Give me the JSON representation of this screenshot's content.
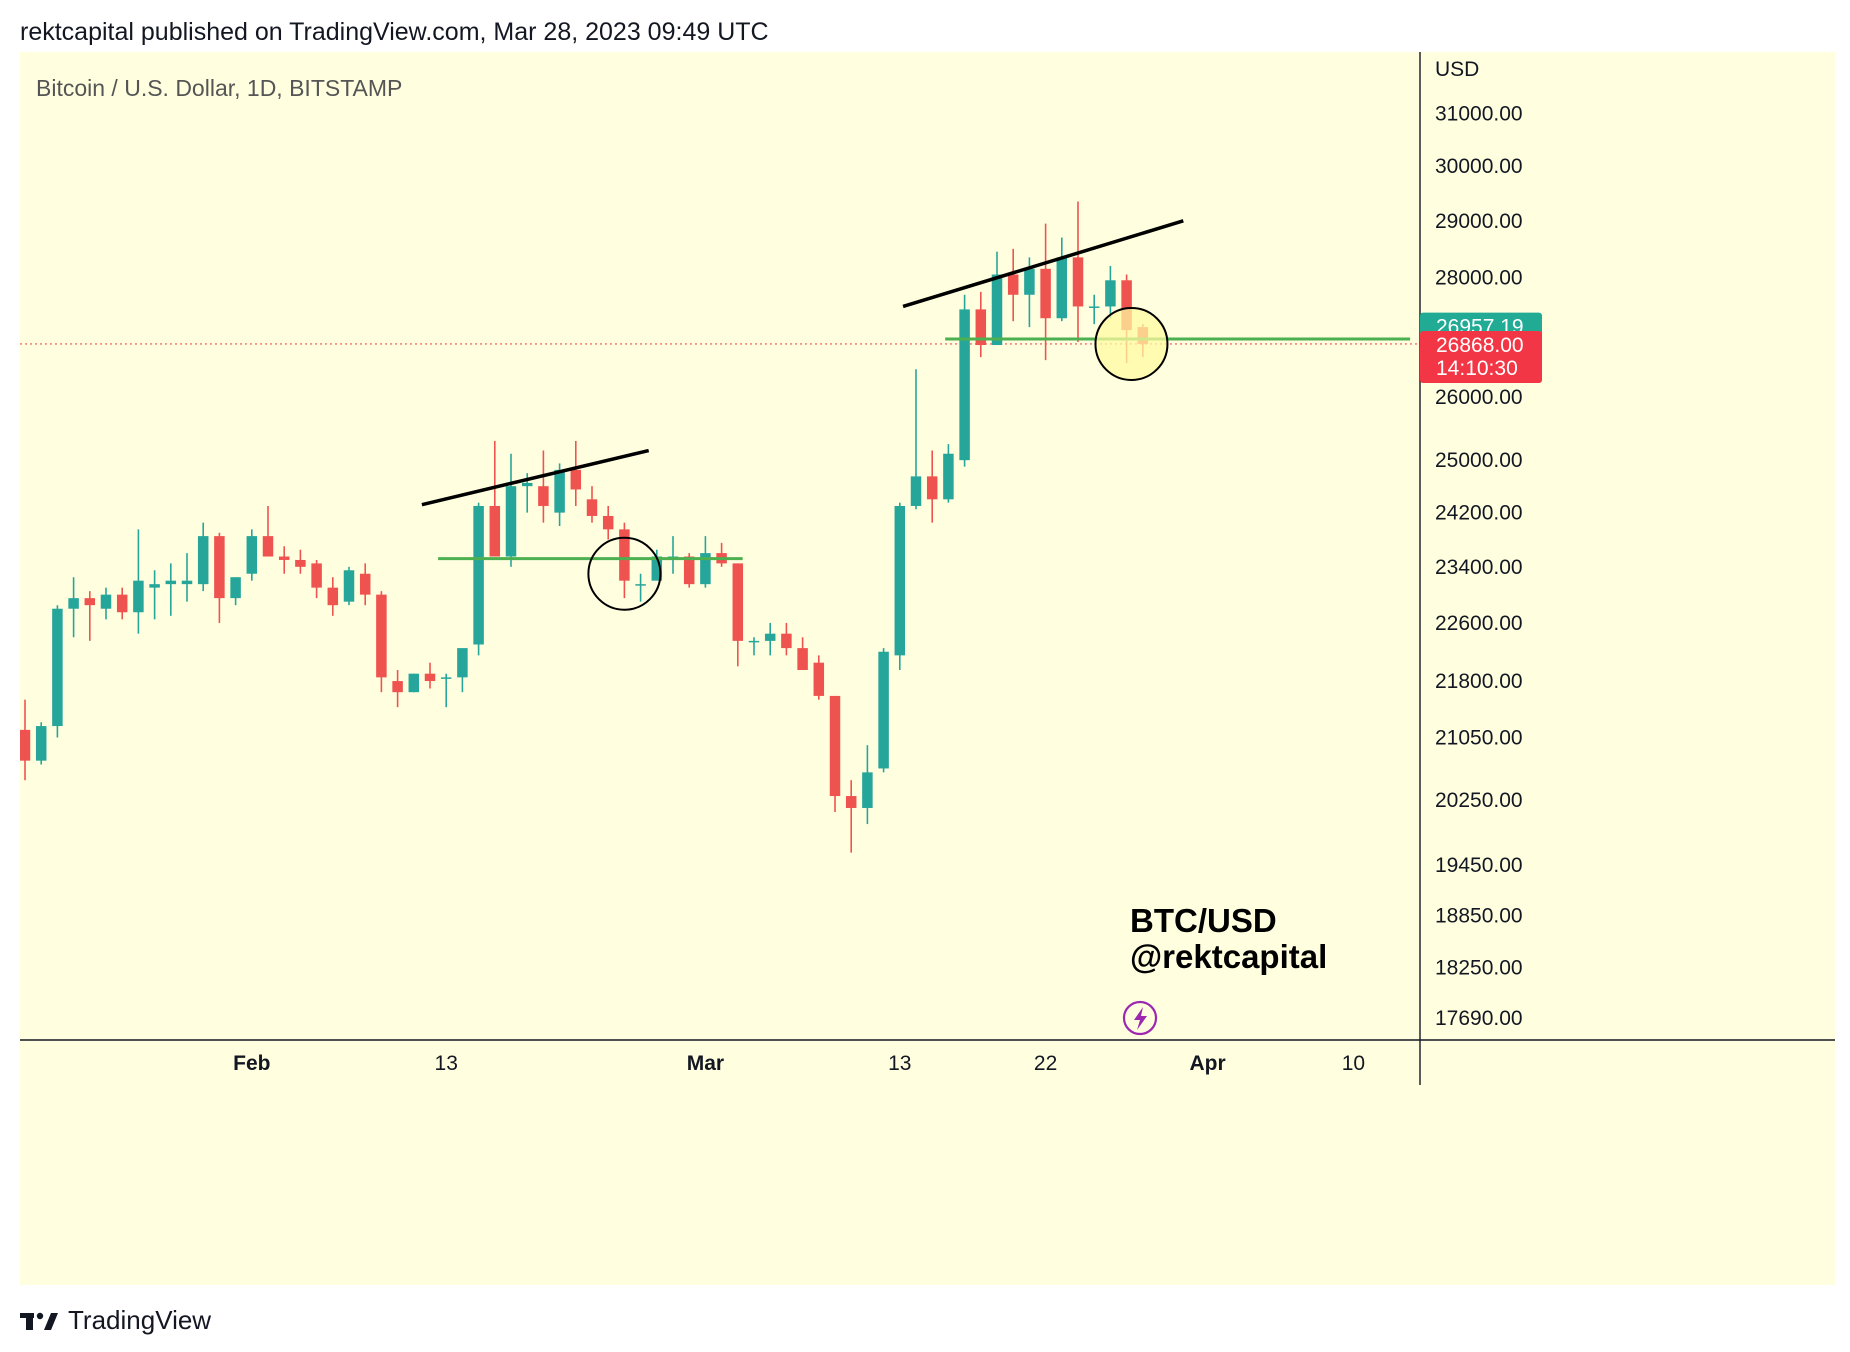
{
  "header": {
    "published": "rektcapital published on TradingView.com, Mar 28, 2023 09:49 UTC"
  },
  "footer": {
    "brand": "TradingView"
  },
  "chart_data": {
    "type": "candlestick",
    "symbol_label": "Bitcoin / U.S. Dollar, 1D, BITSTAMP",
    "currency": "USD",
    "scale": "log",
    "ylim": [
      17450,
      32200
    ],
    "y_ticks": [
      "31000.00",
      "30000.00",
      "29000.00",
      "28000.00",
      "26000.00",
      "25000.00",
      "24200.00",
      "23400.00",
      "22600.00",
      "21800.00",
      "21050.00",
      "20250.00",
      "19450.00",
      "18850.00",
      "18250.00",
      "17690.00"
    ],
    "x_ticks": [
      {
        "label": "Feb",
        "day": 14,
        "bold": true
      },
      {
        "label": "13",
        "day": 26,
        "bold": false
      },
      {
        "label": "Mar",
        "day": 42,
        "bold": true
      },
      {
        "label": "13",
        "day": 54,
        "bold": false
      },
      {
        "label": "22",
        "day": 63,
        "bold": false
      },
      {
        "label": "Apr",
        "day": 73,
        "bold": true
      },
      {
        "label": "10",
        "day": 82,
        "bold": false
      }
    ],
    "candles": [
      {
        "o": 21150,
        "h": 21550,
        "l": 20500,
        "c": 20750
      },
      {
        "o": 20750,
        "h": 21250,
        "l": 20700,
        "c": 21200
      },
      {
        "o": 21200,
        "h": 22850,
        "l": 21050,
        "c": 22800
      },
      {
        "o": 22800,
        "h": 23250,
        "l": 22400,
        "c": 22950
      },
      {
        "o": 22950,
        "h": 23050,
        "l": 22350,
        "c": 22850
      },
      {
        "o": 22800,
        "h": 23100,
        "l": 22650,
        "c": 23000
      },
      {
        "o": 23000,
        "h": 23100,
        "l": 22650,
        "c": 22750
      },
      {
        "o": 22750,
        "h": 23950,
        "l": 22450,
        "c": 23200
      },
      {
        "o": 23100,
        "h": 23350,
        "l": 22650,
        "c": 23150
      },
      {
        "o": 23150,
        "h": 23450,
        "l": 22700,
        "c": 23200
      },
      {
        "o": 23150,
        "h": 23600,
        "l": 22900,
        "c": 23200
      },
      {
        "o": 23150,
        "h": 24050,
        "l": 23050,
        "c": 23850
      },
      {
        "o": 23850,
        "h": 23900,
        "l": 22600,
        "c": 22950
      },
      {
        "o": 22950,
        "h": 23250,
        "l": 22850,
        "c": 23250
      },
      {
        "o": 23300,
        "h": 23950,
        "l": 23200,
        "c": 23850
      },
      {
        "o": 23850,
        "h": 24300,
        "l": 23550,
        "c": 23550
      },
      {
        "o": 23550,
        "h": 23700,
        "l": 23300,
        "c": 23500
      },
      {
        "o": 23500,
        "h": 23650,
        "l": 23300,
        "c": 23400
      },
      {
        "o": 23450,
        "h": 23500,
        "l": 22950,
        "c": 23100
      },
      {
        "o": 23100,
        "h": 23250,
        "l": 22700,
        "c": 22850
      },
      {
        "o": 22900,
        "h": 23400,
        "l": 22850,
        "c": 23350
      },
      {
        "o": 23300,
        "h": 23450,
        "l": 22850,
        "c": 23000
      },
      {
        "o": 23000,
        "h": 23050,
        "l": 21650,
        "c": 21850
      },
      {
        "o": 21800,
        "h": 21950,
        "l": 21450,
        "c": 21650
      },
      {
        "o": 21650,
        "h": 21900,
        "l": 21650,
        "c": 21900
      },
      {
        "o": 21900,
        "h": 22050,
        "l": 21700,
        "c": 21800
      },
      {
        "o": 21850,
        "h": 21900,
        "l": 21450,
        "c": 21850
      },
      {
        "o": 21850,
        "h": 22200,
        "l": 21650,
        "c": 22250
      },
      {
        "o": 22300,
        "h": 24350,
        "l": 22150,
        "c": 24300
      },
      {
        "o": 24300,
        "h": 25300,
        "l": 23550,
        "c": 23550
      },
      {
        "o": 23550,
        "h": 25100,
        "l": 23400,
        "c": 24600
      },
      {
        "o": 24600,
        "h": 24800,
        "l": 24200,
        "c": 24650
      },
      {
        "o": 24600,
        "h": 25150,
        "l": 24050,
        "c": 24300
      },
      {
        "o": 24200,
        "h": 24950,
        "l": 24000,
        "c": 24850
      },
      {
        "o": 24850,
        "h": 25300,
        "l": 24300,
        "c": 24550
      },
      {
        "o": 24400,
        "h": 24600,
        "l": 24050,
        "c": 24150
      },
      {
        "o": 24150,
        "h": 24300,
        "l": 23800,
        "c": 23950
      },
      {
        "o": 23950,
        "h": 24050,
        "l": 22950,
        "c": 23200
      },
      {
        "o": 23150,
        "h": 23300,
        "l": 22900,
        "c": 23150
      },
      {
        "o": 23200,
        "h": 23650,
        "l": 23250,
        "c": 23550
      },
      {
        "o": 23550,
        "h": 23850,
        "l": 23300,
        "c": 23550
      },
      {
        "o": 23550,
        "h": 23600,
        "l": 23100,
        "c": 23150
      },
      {
        "o": 23150,
        "h": 23850,
        "l": 23100,
        "c": 23600
      },
      {
        "o": 23600,
        "h": 23750,
        "l": 23400,
        "c": 23450
      },
      {
        "o": 23450,
        "h": 23450,
        "l": 22000,
        "c": 22350
      },
      {
        "o": 22350,
        "h": 22400,
        "l": 22150,
        "c": 22350
      },
      {
        "o": 22350,
        "h": 22600,
        "l": 22150,
        "c": 22450
      },
      {
        "o": 22450,
        "h": 22600,
        "l": 22150,
        "c": 22250
      },
      {
        "o": 22250,
        "h": 22400,
        "l": 21950,
        "c": 21950
      },
      {
        "o": 22050,
        "h": 22150,
        "l": 21550,
        "c": 21600
      },
      {
        "o": 21600,
        "h": 21600,
        "l": 20100,
        "c": 20300
      },
      {
        "o": 20300,
        "h": 20500,
        "l": 19600,
        "c": 20150
      },
      {
        "o": 20150,
        "h": 20950,
        "l": 19950,
        "c": 20600
      },
      {
        "o": 20650,
        "h": 22250,
        "l": 20600,
        "c": 22200
      },
      {
        "o": 22150,
        "h": 24350,
        "l": 21950,
        "c": 24300
      },
      {
        "o": 24300,
        "h": 26450,
        "l": 24250,
        "c": 24750
      },
      {
        "o": 24750,
        "h": 25150,
        "l": 24050,
        "c": 24400
      },
      {
        "o": 24400,
        "h": 25250,
        "l": 24350,
        "c": 25100
      },
      {
        "o": 25000,
        "h": 27700,
        "l": 24900,
        "c": 27450
      },
      {
        "o": 27450,
        "h": 27750,
        "l": 26650,
        "c": 26850
      },
      {
        "o": 26850,
        "h": 28450,
        "l": 26850,
        "c": 28050
      },
      {
        "o": 28050,
        "h": 28500,
        "l": 27250,
        "c": 27700
      },
      {
        "o": 27700,
        "h": 28350,
        "l": 27150,
        "c": 28150
      },
      {
        "o": 28150,
        "h": 28950,
        "l": 26600,
        "c": 27300
      },
      {
        "o": 27300,
        "h": 28700,
        "l": 27250,
        "c": 28350
      },
      {
        "o": 28350,
        "h": 29350,
        "l": 26900,
        "c": 27500
      },
      {
        "o": 27500,
        "h": 27700,
        "l": 27200,
        "c": 27500
      },
      {
        "o": 27500,
        "h": 28200,
        "l": 27300,
        "c": 27950
      },
      {
        "o": 27950,
        "h": 28050,
        "l": 26550,
        "c": 27100
      },
      {
        "o": 27150,
        "h": 27200,
        "l": 26650,
        "c": 26868
      }
    ],
    "price_labels": [
      {
        "text": "26957.19",
        "price": 26957.19,
        "color": "#22ab94"
      },
      {
        "text": "26868.00",
        "price": 26868.0,
        "sub": "14:10:30",
        "color": "#f23645"
      }
    ],
    "last_price_line": 26868,
    "trendlines": [
      {
        "color": "#000000",
        "points": [
          [
            24.5,
            24320
          ],
          [
            38.5,
            25150
          ]
        ]
      },
      {
        "color": "#000000",
        "points": [
          [
            54.2,
            27500
          ],
          [
            71.5,
            29000
          ]
        ]
      }
    ],
    "support_lines": [
      {
        "color": "#4caf50",
        "price": 23520,
        "from_day": 25.5,
        "to_day": 44.3
      },
      {
        "color": "#4caf50",
        "price": 26950,
        "from_day": 56.8,
        "to_day": 85.5
      }
    ],
    "highlight_circles": [
      {
        "day": 37,
        "price": 23300,
        "fill": false
      },
      {
        "day": 68.3,
        "price": 26868,
        "fill": true
      }
    ],
    "watermark": [
      "BTC/USD",
      "@rektcapital"
    ],
    "colors": {
      "background": "#ffffe0",
      "up": "#26a69a",
      "down": "#ef5350",
      "axis_line": "#131722",
      "text": "#131722"
    }
  }
}
